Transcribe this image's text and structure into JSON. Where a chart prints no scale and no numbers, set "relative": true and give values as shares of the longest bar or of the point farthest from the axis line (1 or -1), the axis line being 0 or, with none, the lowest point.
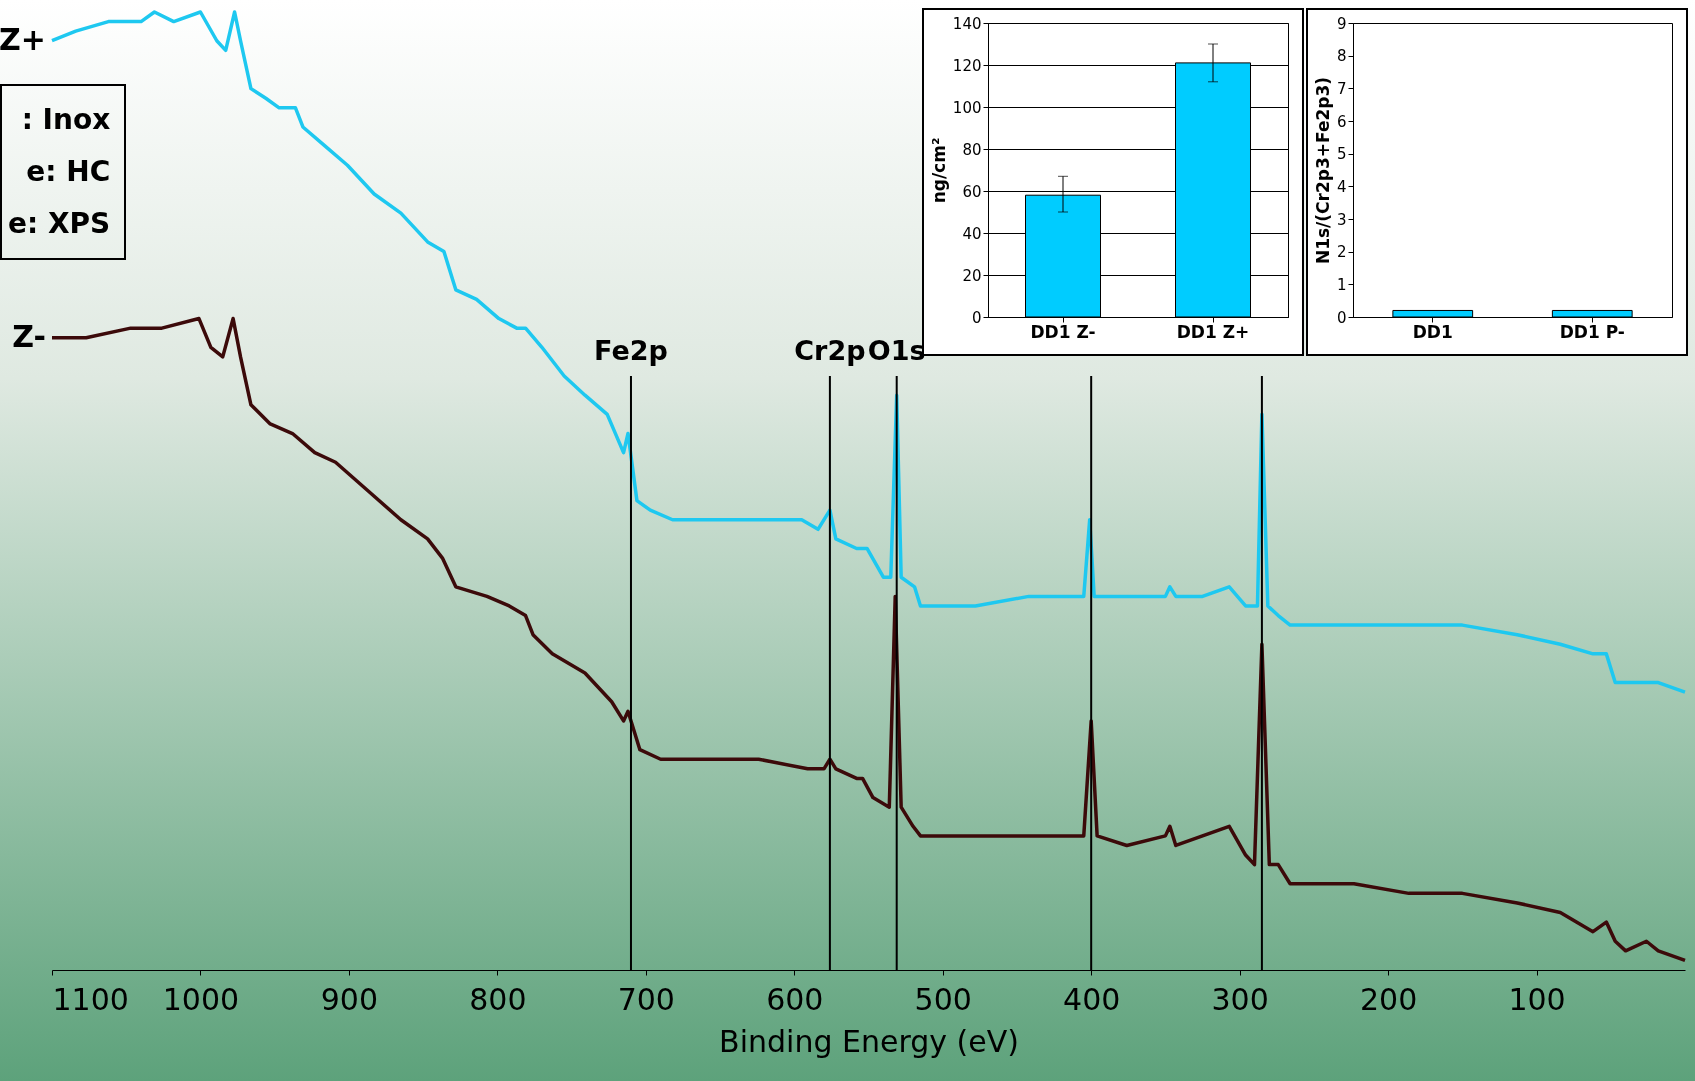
{
  "chart_data": [
    {
      "type": "line",
      "xlabel": "Binding Energy (eV)",
      "xlim": [
        1100,
        0
      ],
      "xticks": [
        1100,
        1000,
        900,
        800,
        700,
        600,
        500,
        400,
        300,
        200,
        100
      ],
      "relative": true,
      "series": [
        {
          "name": "Z+",
          "color": "#1ec8f0",
          "x": [
            1100,
            1084,
            1062,
            1040,
            1031,
            1018,
            1000,
            989,
            983,
            977,
            973,
            966,
            956,
            947,
            936,
            931,
            916,
            901,
            883,
            865,
            847,
            836,
            828,
            814,
            799,
            787,
            781,
            770,
            755,
            741,
            726,
            715,
            712,
            706,
            697,
            682,
            661,
            624,
            595,
            584,
            576,
            572,
            558,
            551,
            540,
            535,
            531,
            528,
            519,
            515,
            478,
            442,
            405,
            401,
            398,
            383,
            350,
            347,
            343,
            325,
            307,
            296,
            288,
            285,
            281,
            274,
            266,
            223,
            186,
            150,
            113,
            84,
            62,
            53,
            47,
            40,
            26,
            18,
            0
          ],
          "values": [
            0.97,
            0.98,
            0.99,
            0.99,
            1.0,
            0.99,
            1.0,
            0.97,
            0.96,
            1.0,
            0.97,
            0.92,
            0.91,
            0.9,
            0.9,
            0.88,
            0.86,
            0.84,
            0.81,
            0.79,
            0.76,
            0.75,
            0.71,
            0.7,
            0.68,
            0.67,
            0.67,
            0.65,
            0.62,
            0.6,
            0.58,
            0.54,
            0.56,
            0.49,
            0.48,
            0.47,
            0.47,
            0.47,
            0.47,
            0.46,
            0.48,
            0.45,
            0.44,
            0.44,
            0.41,
            0.41,
            0.6,
            0.41,
            0.4,
            0.38,
            0.38,
            0.39,
            0.39,
            0.47,
            0.39,
            0.39,
            0.39,
            0.4,
            0.39,
            0.39,
            0.4,
            0.38,
            0.38,
            0.58,
            0.38,
            0.37,
            0.36,
            0.36,
            0.36,
            0.36,
            0.35,
            0.34,
            0.33,
            0.33,
            0.3,
            0.3,
            0.3,
            0.3,
            0.29
          ]
        },
        {
          "name": "Z-",
          "color": "#3c0a0a",
          "x": [
            1100,
            1077,
            1047,
            1026,
            1001,
            993,
            985,
            978,
            973,
            966,
            953,
            938,
            923,
            909,
            887,
            865,
            847,
            837,
            828,
            807,
            792,
            781,
            776,
            763,
            741,
            723,
            715,
            712,
            704,
            690,
            661,
            624,
            591,
            580,
            576,
            572,
            558,
            554,
            547,
            536,
            532,
            528,
            520,
            515,
            478,
            442,
            405,
            400,
            396,
            376,
            350,
            347,
            343,
            325,
            307,
            296,
            290,
            285,
            280,
            274,
            266,
            223,
            186,
            150,
            113,
            84,
            62,
            53,
            47,
            40,
            26,
            18,
            0
          ],
          "values": [
            0.66,
            0.66,
            0.67,
            0.67,
            0.68,
            0.65,
            0.64,
            0.68,
            0.64,
            0.59,
            0.57,
            0.56,
            0.54,
            0.53,
            0.5,
            0.47,
            0.45,
            0.43,
            0.4,
            0.39,
            0.38,
            0.37,
            0.35,
            0.33,
            0.31,
            0.28,
            0.26,
            0.27,
            0.23,
            0.22,
            0.22,
            0.22,
            0.21,
            0.21,
            0.22,
            0.21,
            0.2,
            0.2,
            0.18,
            0.17,
            0.39,
            0.17,
            0.15,
            0.14,
            0.14,
            0.14,
            0.14,
            0.26,
            0.14,
            0.13,
            0.14,
            0.15,
            0.13,
            0.14,
            0.15,
            0.12,
            0.11,
            0.34,
            0.11,
            0.11,
            0.09,
            0.09,
            0.08,
            0.08,
            0.07,
            0.06,
            0.04,
            0.05,
            0.03,
            0.02,
            0.03,
            0.02,
            0.01
          ]
        }
      ],
      "ref_lines": [
        {
          "axis": "x",
          "value": 710,
          "label": "Fe2p",
          "color": "#000000"
        },
        {
          "axis": "x",
          "value": 576,
          "label": "Cr2p",
          "color": "#000000"
        },
        {
          "axis": "x",
          "value": 531,
          "label": "O1s",
          "color": "#000000"
        },
        {
          "axis": "x",
          "value": 400,
          "label": null,
          "color": "#000000"
        },
        {
          "axis": "x",
          "value": 285,
          "label": null,
          "color": "#000000"
        }
      ],
      "annotations": [
        ": Inox",
        "e: HC",
        "e: XPS"
      ]
    },
    {
      "type": "bar",
      "categories": [
        "DD1 Z-",
        "DD1 Z+"
      ],
      "values": [
        58,
        121
      ],
      "colors": [
        "#00ccff",
        "#00ccff"
      ],
      "errors": [
        [
          50,
          67
        ],
        [
          112,
          130
        ]
      ],
      "ylabel": "ng/cm²",
      "ylim": [
        0,
        140
      ],
      "yticks": [
        0,
        20,
        40,
        60,
        80,
        100,
        120,
        140
      ],
      "grid": "y"
    },
    {
      "type": "bar",
      "categories": [
        "DD1",
        "DD1 P-"
      ],
      "values": [
        0.2,
        0.2
      ],
      "colors": [
        "#00ccff",
        "#00ccff"
      ],
      "ylabel": "N1s/(Cr2p3+Fe2p3)",
      "ylim": [
        0,
        9
      ],
      "yticks": [
        0,
        1,
        2,
        3,
        4,
        5,
        6,
        7,
        8,
        9
      ]
    }
  ]
}
